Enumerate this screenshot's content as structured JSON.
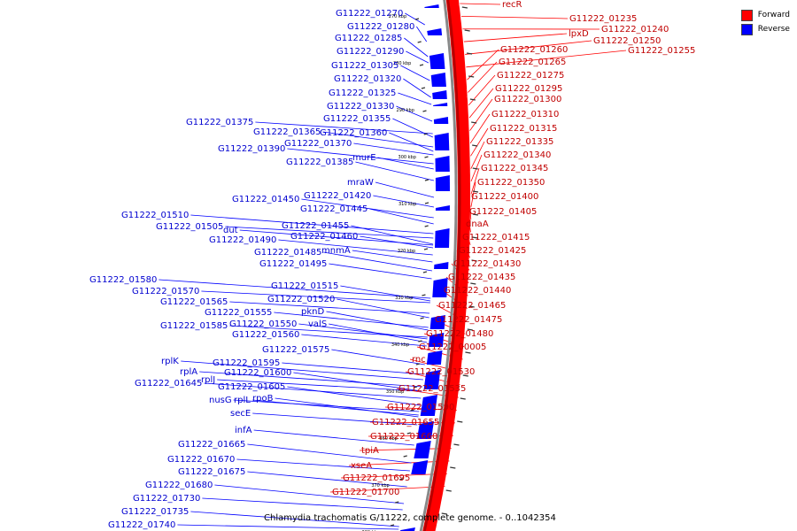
{
  "legend": {
    "forward": "Forward",
    "reverse": "Reverse",
    "forward_color": "#ff0000",
    "reverse_color": "#0000ff"
  },
  "caption": "Chlamydia trachomatis G/11222, complete genome. - 0..1042354",
  "colors": {
    "forward": "#ff0000",
    "reverse": "#0000ff",
    "ring_dark": "#b80000",
    "backbone": "#888888",
    "tick": "#333333"
  },
  "kbp_marks": [
    "270 kbp",
    "280 kbp",
    "290 kbp",
    "300 kbp",
    "310 kbp",
    "320 kbp",
    "330 kbp",
    "340 kbp",
    "350 kbp",
    "360 kbp",
    "370 kbp",
    "380 kbp"
  ],
  "forward_labels": [
    "recR",
    "G11222_01235",
    "G11222_01240",
    "lpxD",
    "G11222_01250",
    "G11222_01255",
    "G11222_01260",
    "G11222_01265",
    "G11222_01275",
    "G11222_01295",
    "G11222_01300",
    "G11222_01310",
    "G11222_01315",
    "G11222_01335",
    "G11222_01340",
    "G11222_01345",
    "G11222_01350",
    "G11222_01400",
    "G11222_01405",
    "dnaA",
    "G11222_01415",
    "G11222_01425",
    "G11222_01430",
    "G11222_01435",
    "G11222_01440",
    "G11222_01465",
    "G11222_01475",
    "G11222_01480",
    "G11222_00005",
    "rnc",
    "G11222_01530",
    "G11222_01535",
    "G11222_01590",
    "G11222_01655",
    "G11222_01660",
    "tpiA",
    "xseA",
    "G11222_01695",
    "G11222_01700"
  ],
  "reverse_labels": [
    "G11222_01270",
    "G11222_01280",
    "G11222_01285",
    "G11222_01290",
    "G11222_01305",
    "G11222_01320",
    "G11222_01325",
    "G11222_01330",
    "G11222_01355",
    "G11222_01375",
    "G11222_01365",
    "G11222_01360",
    "G11222_01370",
    "G11222_01390",
    "G11222_01385",
    "murE",
    "mraW",
    "G11222_01450",
    "G11222_01420",
    "G11222_01445",
    "G11222_01510",
    "G11222_01505",
    "dut",
    "G11222_01455",
    "G11222_01460",
    "G11222_01490",
    "G11222_01485",
    "mnmA",
    "G11222_01495",
    "G11222_01580",
    "G11222_01570",
    "G11222_01515",
    "G11222_01520",
    "G11222_01565",
    "G11222_01555",
    "pknD",
    "G11222_01585",
    "G11222_01550",
    "valS",
    "G11222_01560",
    "G11222_01575",
    "rplK",
    "G11222_01595",
    "rplA",
    "G11222_01600",
    "rplJ",
    "G11222_01645",
    "G11222_01605",
    "nusG",
    "rplL",
    "rpoB",
    "secE",
    "infA",
    "G11222_01665",
    "G11222_01670",
    "G11222_01675",
    "G11222_01680",
    "G11222_01730",
    "G11222_01735",
    "G11222_01740"
  ]
}
